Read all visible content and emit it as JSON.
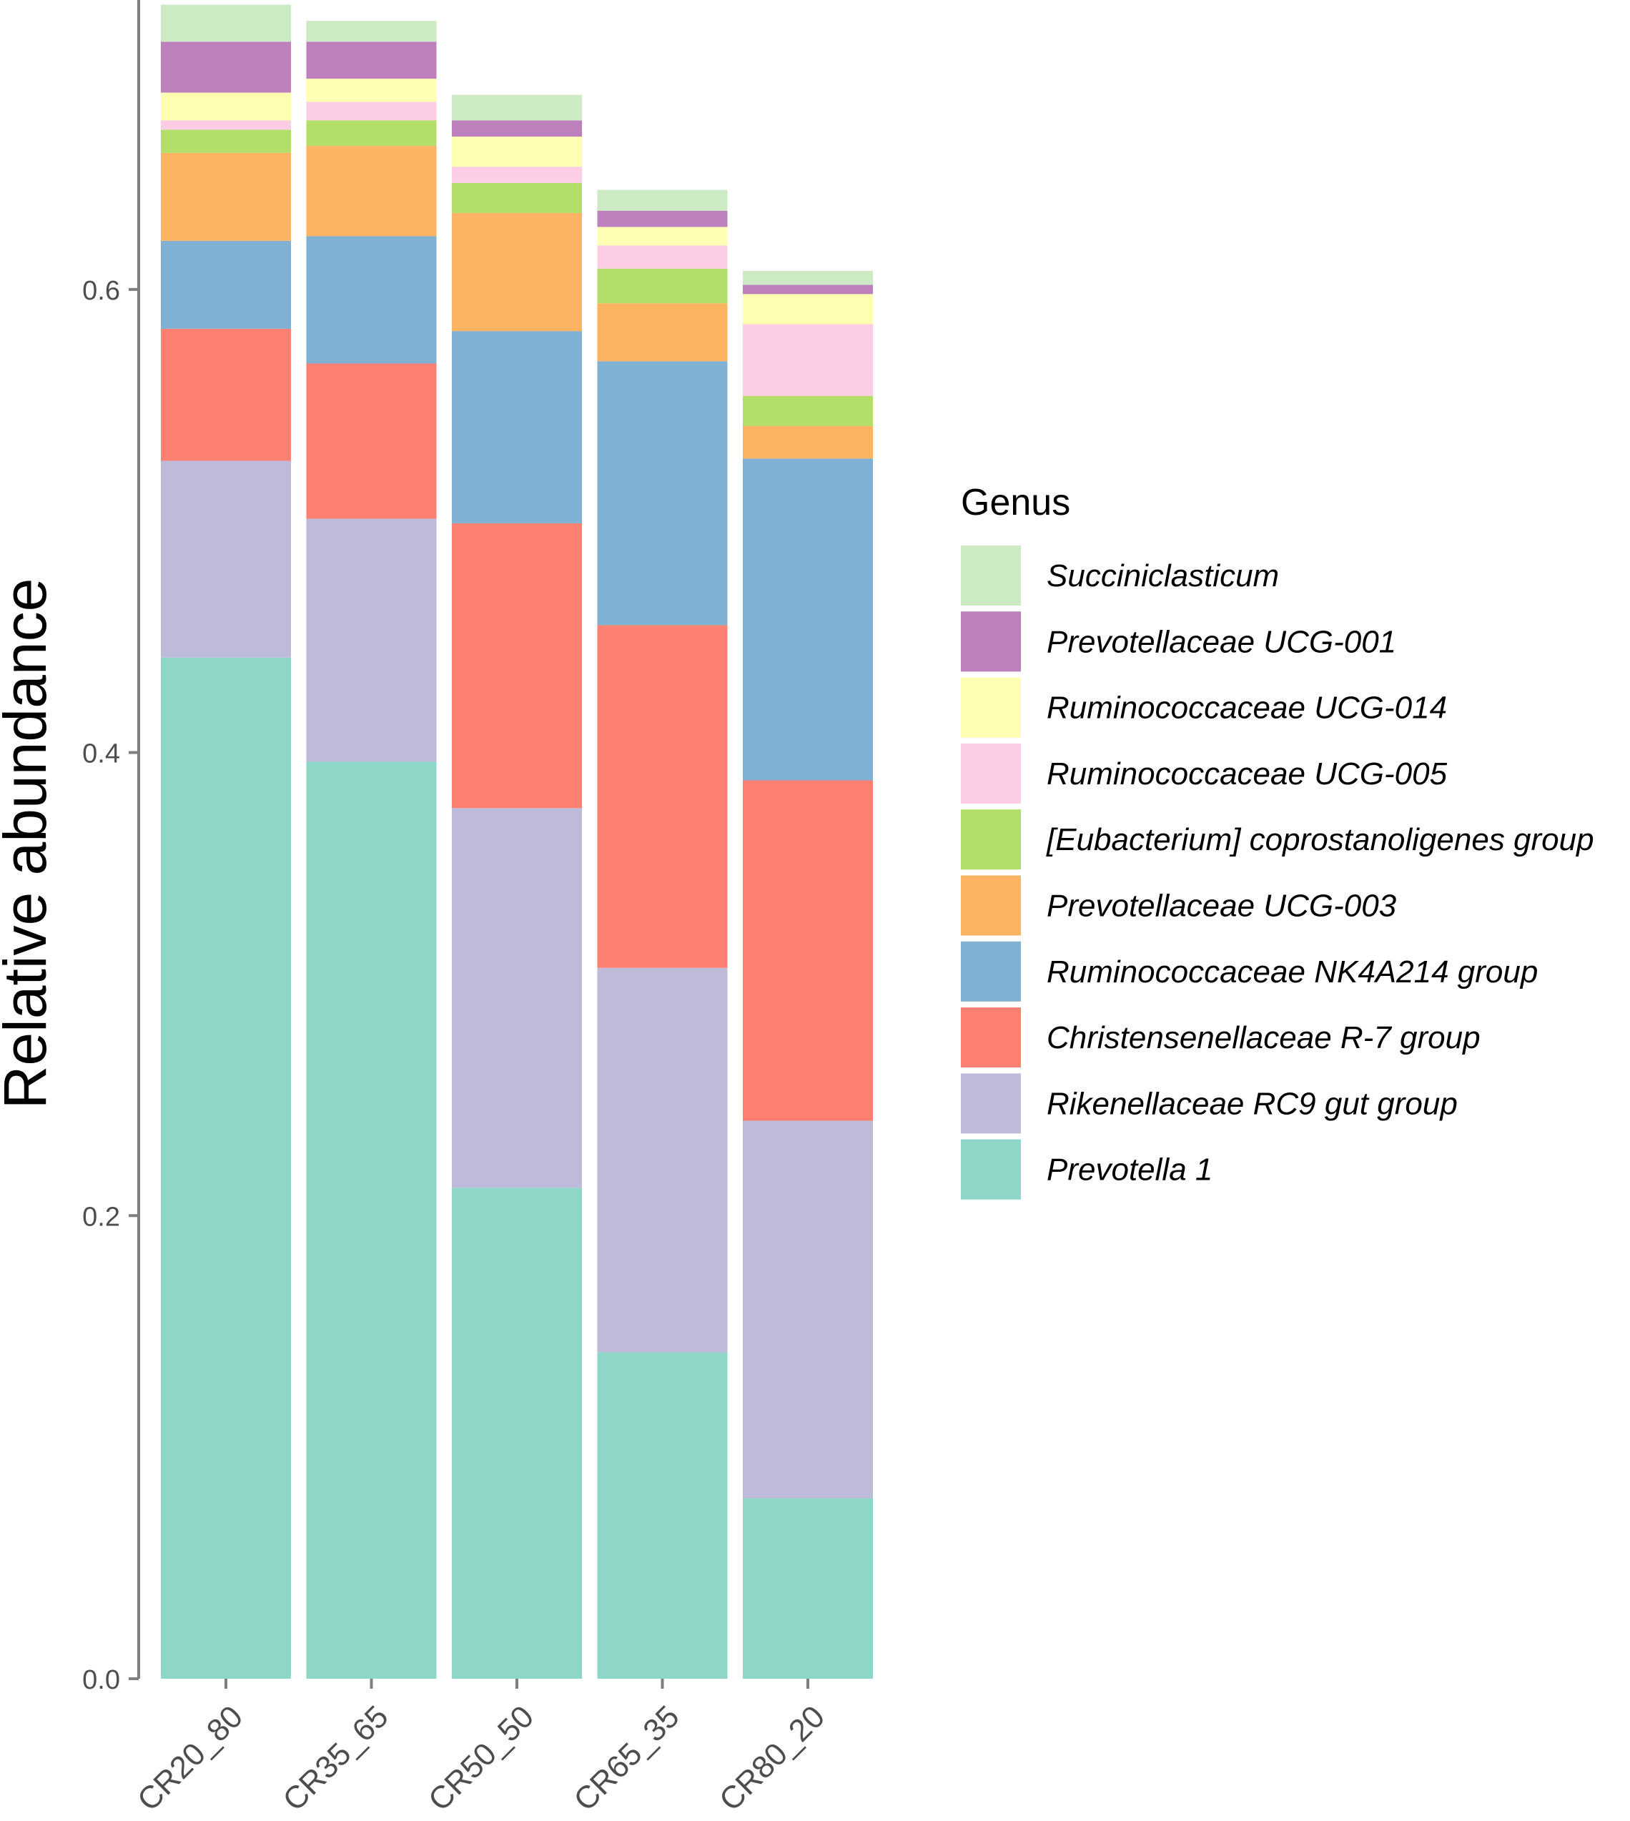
{
  "chart_data": {
    "type": "bar",
    "stacked": true,
    "title": "",
    "xlabel": "",
    "ylabel": "Relative abundance",
    "ylim": [
      0,
      0.725
    ],
    "yticks": [
      0.0,
      0.2,
      0.4,
      0.6
    ],
    "ytick_labels": [
      "0.0",
      "0.2",
      "0.4",
      "0.6"
    ],
    "categories": [
      "CR20_80",
      "CR35_65",
      "CR50_50",
      "CR65_35",
      "CR80_20"
    ],
    "legend": {
      "title": "Genus",
      "position": "right"
    },
    "series": [
      {
        "name": "Prevotella 1",
        "color": "#8DD6C8",
        "values": [
          0.441,
          0.396,
          0.212,
          0.141,
          0.078
        ]
      },
      {
        "name": "Rikenellaceae RC9 gut group",
        "color": "#BEBAD9",
        "values": [
          0.085,
          0.105,
          0.164,
          0.166,
          0.163
        ]
      },
      {
        "name": "Christensenellaceae R-7 group",
        "color": "#FB8072",
        "values": [
          0.057,
          0.067,
          0.123,
          0.148,
          0.147
        ]
      },
      {
        "name": "Ruminococcaceae NK4A214 group",
        "color": "#80B1D3",
        "values": [
          0.038,
          0.055,
          0.083,
          0.114,
          0.139
        ]
      },
      {
        "name": "Prevotellaceae UCG-003",
        "color": "#FDB462",
        "values": [
          0.038,
          0.039,
          0.051,
          0.025,
          0.014
        ]
      },
      {
        "name": "[Eubacterium] coprostanoligenes group",
        "color": "#B3DE69",
        "values": [
          0.01,
          0.011,
          0.013,
          0.015,
          0.013
        ]
      },
      {
        "name": "Ruminococcaceae UCG-005",
        "color": "#FCCDE5",
        "values": [
          0.004,
          0.008,
          0.007,
          0.01,
          0.031
        ]
      },
      {
        "name": "Ruminococcaceae UCG-014",
        "color": "#FFFFB3",
        "values": [
          0.012,
          0.01,
          0.013,
          0.008,
          0.013
        ]
      },
      {
        "name": "Prevotellaceae UCG-001",
        "color": "#BC80BD",
        "values": [
          0.022,
          0.016,
          0.007,
          0.007,
          0.004
        ]
      },
      {
        "name": "Succiniclasticum",
        "color": "#CCEBC5",
        "values": [
          0.016,
          0.009,
          0.011,
          0.009,
          0.006
        ]
      }
    ]
  }
}
